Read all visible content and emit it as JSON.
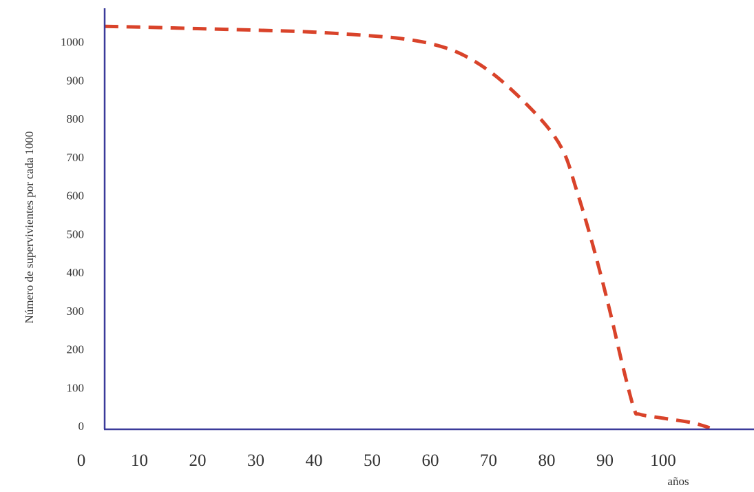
{
  "chart_data": {
    "type": "line",
    "title": "",
    "ylabel": "Número de supervivientes por cada 1000",
    "xlabel": "años",
    "x_ticks": [
      "0",
      "10",
      "20",
      "30",
      "40",
      "50",
      "60",
      "70",
      "80",
      "90",
      "100"
    ],
    "y_ticks": [
      "0",
      "100",
      "200",
      "300",
      "400",
      "500",
      "600",
      "700",
      "800",
      "900",
      "1000"
    ],
    "xlim": [
      0,
      112
    ],
    "ylim": [
      0,
      1000
    ],
    "grid": false,
    "series": [
      {
        "style": "dashed",
        "color": "#d9432a",
        "x": [
          4,
          10,
          20,
          30,
          40,
          50,
          55,
          60,
          65,
          70,
          75,
          80,
          83,
          85,
          87,
          89,
          91,
          93,
          95,
          96,
          100,
          105,
          108
        ],
        "y": [
          1040,
          1038,
          1034,
          1030,
          1025,
          1015,
          1008,
          995,
          970,
          925,
          860,
          780,
          710,
          620,
          520,
          410,
          290,
          160,
          45,
          30,
          20,
          8,
          -5
        ]
      }
    ]
  },
  "colors": {
    "axis": "#3b3b9a",
    "curve": "#d9432a",
    "text": "#333333"
  }
}
